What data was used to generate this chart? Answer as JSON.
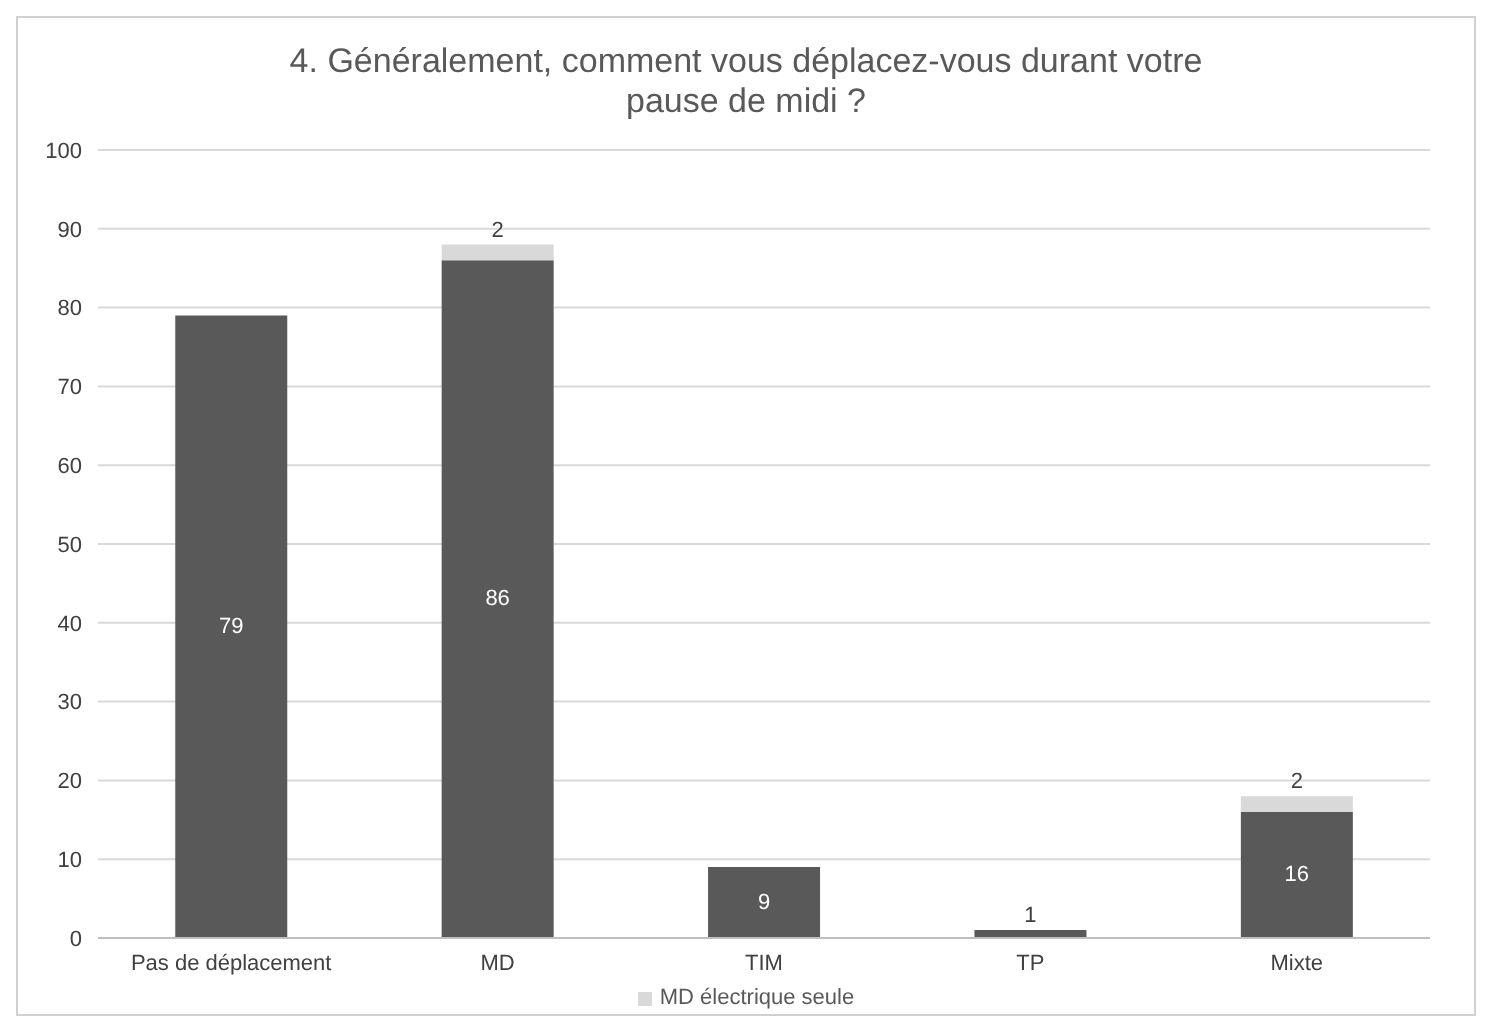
{
  "chart_data": {
    "type": "bar",
    "title": "4. Généralement, comment vous déplacez-vous durant votre pause de midi ?",
    "categories": [
      "Pas de déplacement",
      "MD",
      "TIM",
      "TP",
      "Mixte"
    ],
    "series": [
      {
        "color": "#595959",
        "values": [
          79,
          86,
          9,
          1,
          16
        ]
      },
      {
        "name": "MD électrique seule",
        "color": "#d9d9d9",
        "values": [
          null,
          2,
          null,
          null,
          2
        ]
      }
    ],
    "stacked": true,
    "ylim": [
      0,
      100
    ],
    "yticks": [
      0,
      10,
      20,
      30,
      40,
      50,
      60,
      70,
      80,
      90,
      100
    ],
    "grid": "y",
    "legend": "bottom",
    "data_labels": true
  }
}
